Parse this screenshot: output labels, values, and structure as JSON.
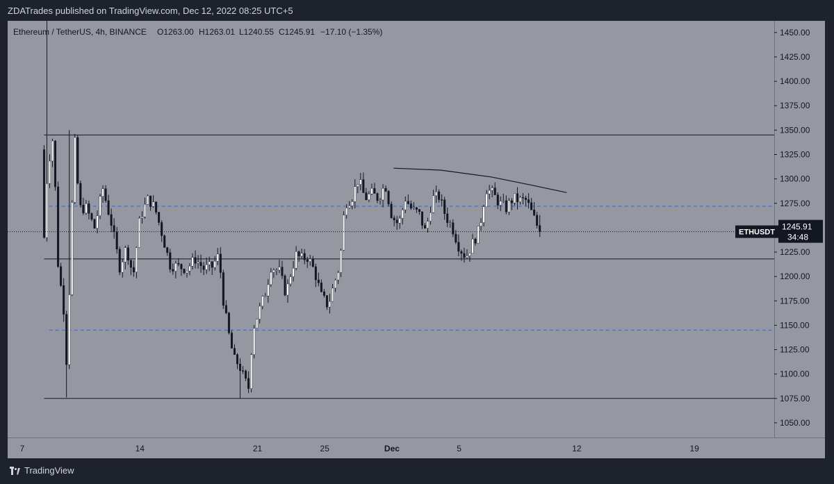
{
  "header": {
    "publish_text": "ZDATrades published on TradingView.com, Dec 12, 2022 08:25 UTC+5"
  },
  "legend": {
    "symbol": "Ethereum / TetherUS, 4h, BINANCE",
    "open": "O1263.00",
    "high": "H1263.01",
    "low": "L1240.55",
    "close": "C1245.91",
    "change": "−17.10 (−1.35%)"
  },
  "footer": {
    "brand": "TradingView"
  },
  "price_tag": {
    "symbol": "ETHUSDT",
    "price": "1245.91",
    "countdown": "34:48"
  },
  "colors": {
    "bg": "#9598a1",
    "up": "#ffffff",
    "down": "#131722",
    "hline": "#131722",
    "dashed": "#2962ff",
    "axis_text": "#131722",
    "tag": "#131722"
  },
  "chart_data": {
    "type": "candlestick",
    "ylim": [
      1035,
      1462
    ],
    "x_range_days": [
      6.5,
      23.5
    ],
    "y_ticks": [
      "1450.00",
      "1425.00",
      "1400.00",
      "1375.00",
      "1350.00",
      "1325.00",
      "1300.00",
      "1275.00",
      "1250.00",
      "1225.00",
      "1200.00",
      "1175.00",
      "1150.00",
      "1125.00",
      "1100.00",
      "1075.00",
      "1050.00"
    ],
    "x_ticks": [
      {
        "label": "7",
        "day": 7
      },
      {
        "label": "14",
        "day": 14
      },
      {
        "label": "21",
        "day": 21
      },
      {
        "label": "25",
        "day": 25
      },
      {
        "label": "Dec",
        "day": 29
      },
      {
        "label": "5",
        "day": 33
      },
      {
        "label": "12",
        "day": 40
      },
      {
        "label": "19",
        "day": 47
      }
    ],
    "horizontal_lines": [
      {
        "price": 1345,
        "from_day": 8.3,
        "style": "solid"
      },
      {
        "price": 1218,
        "from_day": 8.3,
        "style": "solid"
      },
      {
        "price": 1075,
        "from_day": 8.3,
        "style": "solid"
      },
      {
        "price": 1272,
        "from_day": 8.6,
        "style": "dashed"
      },
      {
        "price": 1145,
        "from_day": 8.6,
        "style": "dashed"
      }
    ],
    "trendline": {
      "points": [
        [
          29.1,
          1311
        ],
        [
          31.9,
          1309
        ],
        [
          34.9,
          1302
        ],
        [
          37.2,
          1294
        ],
        [
          39.4,
          1286
        ]
      ]
    },
    "current_price": 1245.91,
    "anchors": [
      [
        8.3,
        1240
      ],
      [
        8.5,
        1310
      ],
      [
        8.8,
        1340
      ],
      [
        9.0,
        1280
      ],
      [
        9.2,
        1180
      ],
      [
        9.4,
        1200
      ],
      [
        9.6,
        1100
      ],
      [
        9.8,
        1185
      ],
      [
        10.1,
        1345
      ],
      [
        10.4,
        1270
      ],
      [
        10.8,
        1270
      ],
      [
        11.3,
        1250
      ],
      [
        11.8,
        1290
      ],
      [
        12.3,
        1255
      ],
      [
        12.8,
        1210
      ],
      [
        13.2,
        1230
      ],
      [
        13.6,
        1200
      ],
      [
        14.0,
        1260
      ],
      [
        14.5,
        1280
      ],
      [
        14.9,
        1270
      ],
      [
        15.3,
        1245
      ],
      [
        15.8,
        1212
      ],
      [
        16.3,
        1210
      ],
      [
        16.8,
        1208
      ],
      [
        17.3,
        1218
      ],
      [
        17.8,
        1208
      ],
      [
        18.3,
        1210
      ],
      [
        18.7,
        1222
      ],
      [
        19.0,
        1170
      ],
      [
        19.3,
        1140
      ],
      [
        19.6,
        1115
      ],
      [
        19.9,
        1110
      ],
      [
        20.2,
        1095
      ],
      [
        20.5,
        1085
      ],
      [
        20.7,
        1145
      ],
      [
        21.1,
        1165
      ],
      [
        21.5,
        1185
      ],
      [
        21.8,
        1210
      ],
      [
        22.3,
        1205
      ],
      [
        22.7,
        1182
      ],
      [
        23.0,
        1205
      ],
      [
        23.3,
        1222
      ],
      [
        23.6,
        1218
      ],
      [
        24.0,
        1220
      ],
      [
        24.4,
        1205
      ],
      [
        24.8,
        1180
      ],
      [
        25.2,
        1170
      ],
      [
        25.6,
        1195
      ],
      [
        25.9,
        1212
      ],
      [
        26.2,
        1275
      ],
      [
        26.6,
        1280
      ],
      [
        27.0,
        1300
      ],
      [
        27.4,
        1280
      ],
      [
        27.8,
        1285
      ],
      [
        28.2,
        1280
      ],
      [
        28.6,
        1295
      ],
      [
        29.0,
        1262
      ],
      [
        29.4,
        1253
      ],
      [
        29.8,
        1280
      ],
      [
        30.2,
        1268
      ],
      [
        30.6,
        1265
      ],
      [
        31.0,
        1245
      ],
      [
        31.4,
        1280
      ],
      [
        31.8,
        1282
      ],
      [
        32.2,
        1262
      ],
      [
        32.6,
        1250
      ],
      [
        33.0,
        1230
      ],
      [
        33.4,
        1220
      ],
      [
        33.8,
        1234
      ],
      [
        34.2,
        1248
      ],
      [
        34.6,
        1290
      ],
      [
        35.0,
        1285
      ],
      [
        35.4,
        1275
      ],
      [
        35.8,
        1270
      ],
      [
        36.2,
        1280
      ],
      [
        36.6,
        1278
      ],
      [
        37.0,
        1278
      ],
      [
        37.4,
        1262
      ],
      [
        37.8,
        1246
      ]
    ]
  }
}
